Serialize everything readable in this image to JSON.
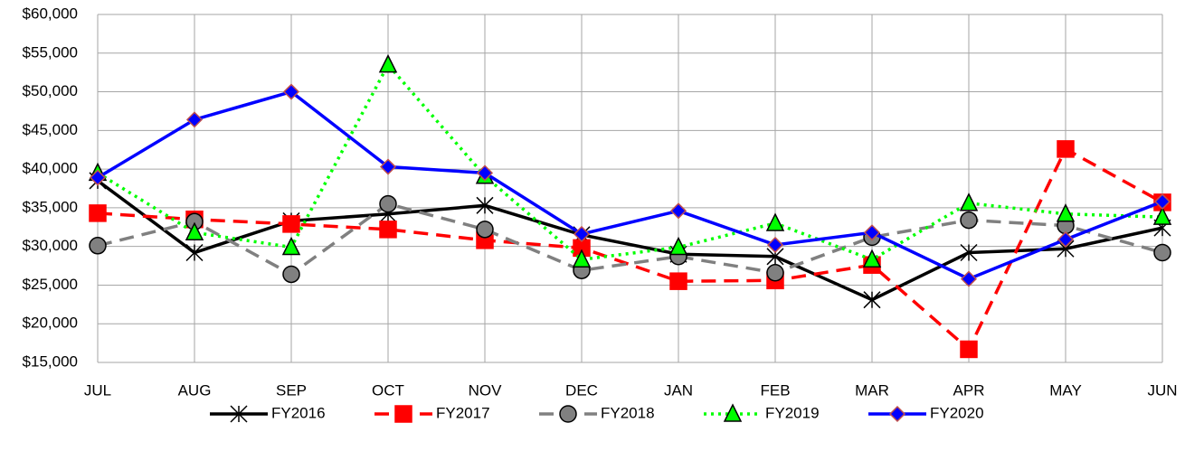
{
  "chart_data": {
    "type": "line",
    "categories": [
      "JUL",
      "AUG",
      "SEP",
      "OCT",
      "NOV",
      "DEC",
      "JAN",
      "FEB",
      "MAR",
      "APR",
      "MAY",
      "JUN"
    ],
    "series": [
      {
        "name": "FY2016",
        "color": "#000000",
        "dash": "solid",
        "marker": "star",
        "values": [
          38500,
          29200,
          33300,
          34200,
          35300,
          31500,
          29000,
          28700,
          23100,
          29200,
          29700,
          32400
        ]
      },
      {
        "name": "FY2017",
        "color": "#ff0000",
        "dash": "dashed",
        "marker": "square",
        "values": [
          34300,
          33500,
          32900,
          32200,
          30800,
          29800,
          25500,
          25600,
          27600,
          16700,
          42600,
          35700
        ]
      },
      {
        "name": "FY2018",
        "color": "#808080",
        "dash": "dashed",
        "marker": "circle",
        "values": [
          30100,
          33200,
          26400,
          35500,
          32200,
          26900,
          28700,
          26600,
          31200,
          33400,
          32700,
          29200
        ]
      },
      {
        "name": "FY2019",
        "color": "#00ff00",
        "dash": "dotted",
        "marker": "triangle",
        "values": [
          39500,
          31800,
          29900,
          53500,
          39100,
          28300,
          29900,
          33000,
          28300,
          35600,
          34200,
          33800
        ]
      },
      {
        "name": "FY2020",
        "color": "#0000ff",
        "dash": "solid",
        "marker": "diamond",
        "values": [
          38900,
          46400,
          50000,
          40300,
          39500,
          31600,
          34600,
          30200,
          31800,
          25800,
          30900,
          35800
        ]
      }
    ],
    "ylim": [
      15000,
      60000
    ],
    "yticks": [
      {
        "value": 15000,
        "label": "$15,000"
      },
      {
        "value": 20000,
        "label": "$20,000"
      },
      {
        "value": 25000,
        "label": "$25,000"
      },
      {
        "value": 30000,
        "label": "$30,000"
      },
      {
        "value": 35000,
        "label": "$35,000"
      },
      {
        "value": 40000,
        "label": "$40,000"
      },
      {
        "value": 45000,
        "label": "$45,000"
      },
      {
        "value": 50000,
        "label": "$50,000"
      },
      {
        "value": 55000,
        "label": "$55,000"
      },
      {
        "value": 60000,
        "label": "$60,000"
      }
    ],
    "grid": true,
    "legend": "bottom"
  }
}
